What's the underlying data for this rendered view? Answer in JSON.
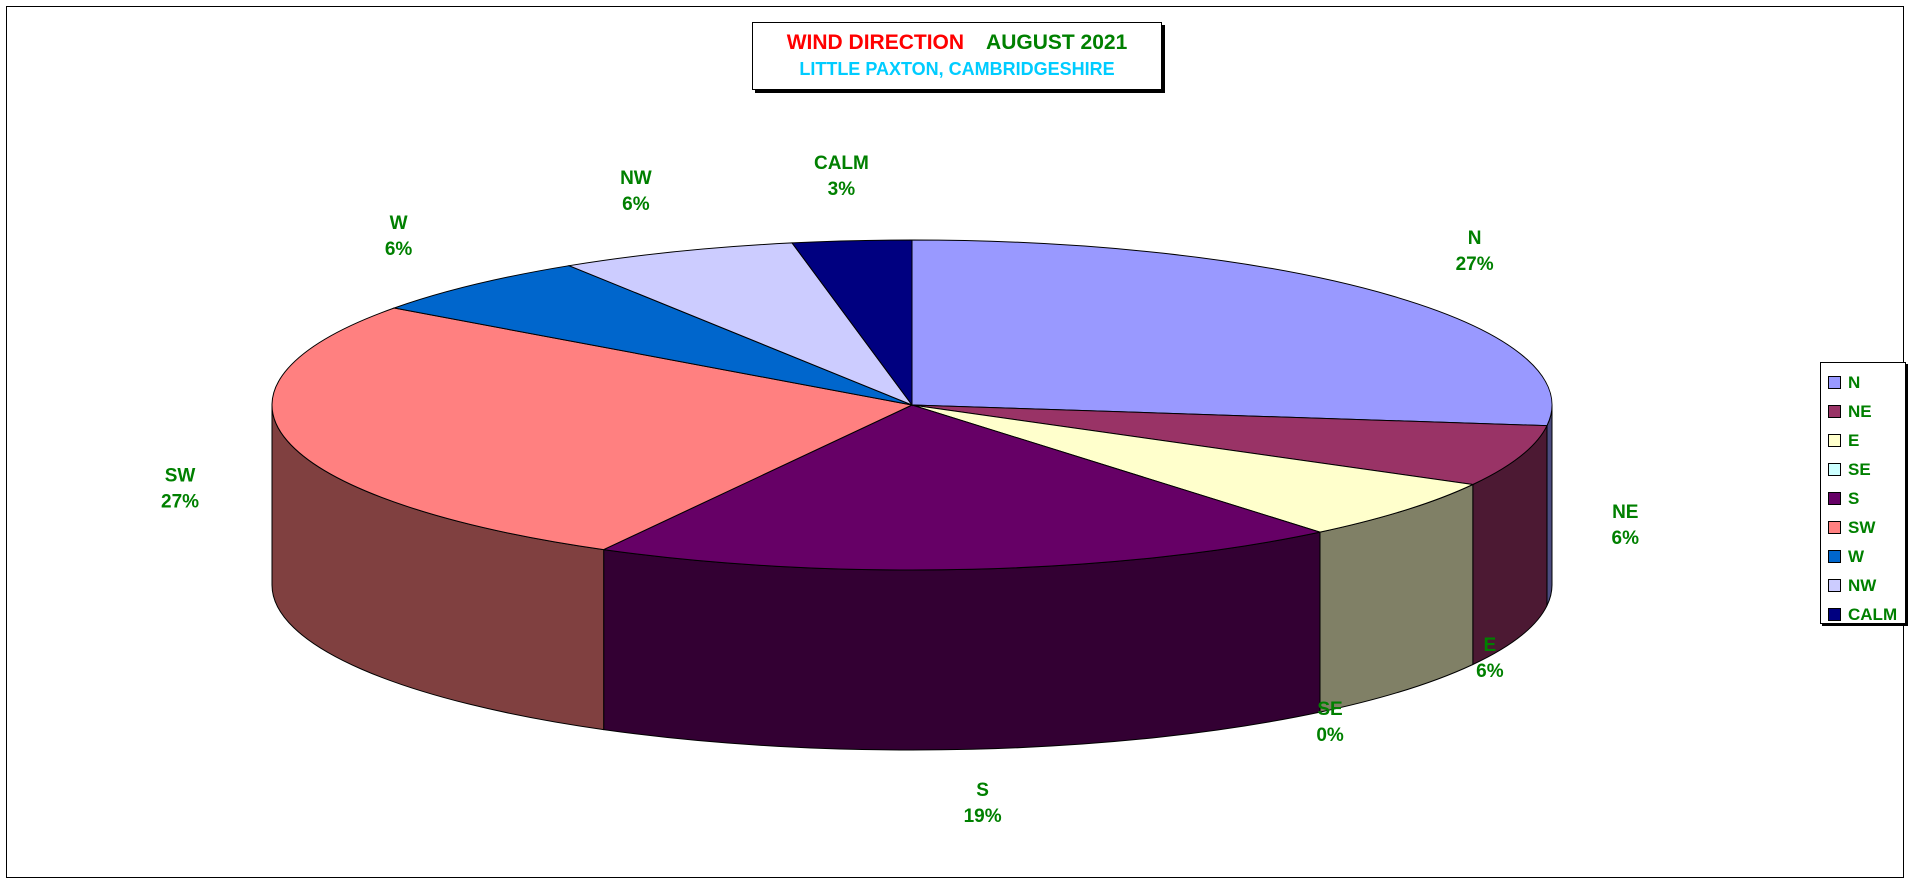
{
  "chart_data": {
    "type": "pie",
    "style": "3d",
    "title_part1": "WIND DIRECTION",
    "title_part2": "AUGUST 2021",
    "subtitle": "LITTLE PAXTON, CAMBRIDGESHIRE",
    "legend_position": "right",
    "categories": [
      "N",
      "NE",
      "E",
      "SE",
      "S",
      "SW",
      "W",
      "NW",
      "CALM"
    ],
    "values": [
      27,
      6,
      6,
      0,
      19,
      27,
      6,
      6,
      3
    ],
    "labels": [
      "27%",
      "6%",
      "6%",
      "0%",
      "19%",
      "27%",
      "6%",
      "6%",
      "3%"
    ],
    "colors": [
      "#9999ff",
      "#993366",
      "#ffffcc",
      "#ccffff",
      "#660066",
      "#ff8080",
      "#0066cc",
      "#ccccff",
      "#000080"
    ],
    "side_colors": [
      "#4c4c80",
      "#4c1933",
      "#808066",
      "#668080",
      "#330033",
      "#804040",
      "#003366",
      "#666680",
      "#000040"
    ]
  }
}
